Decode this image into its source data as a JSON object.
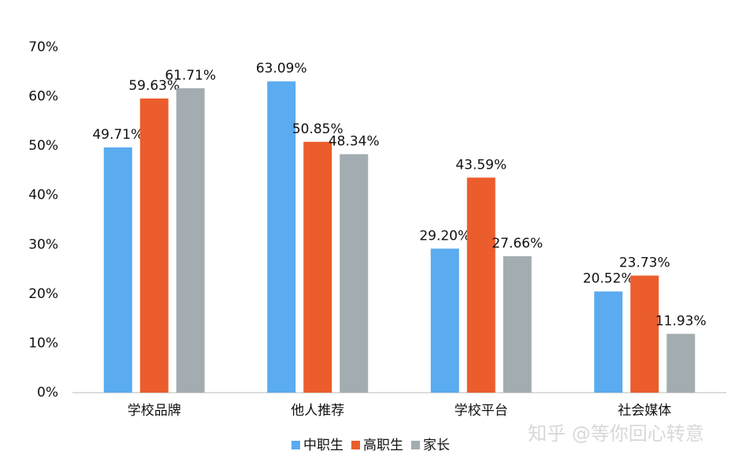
{
  "chart_data": {
    "type": "bar",
    "categories": [
      "学校品牌",
      "他人推荐",
      "学校平台",
      "社会媒体"
    ],
    "series": [
      {
        "name": "中职生",
        "color": "#5aabef",
        "values": [
          49.71,
          63.09,
          29.2,
          20.52
        ],
        "value_labels": [
          "49.71%",
          "63.09%",
          "29.20%",
          "20.52%"
        ]
      },
      {
        "name": "高职生",
        "color": "#eb5d2c",
        "values": [
          59.63,
          50.85,
          43.59,
          23.73
        ],
        "value_labels": [
          "59.63%",
          "50.85%",
          "43.59%",
          "23.73%"
        ]
      },
      {
        "name": "家长",
        "color": "#a3adb1",
        "values": [
          61.71,
          48.34,
          27.66,
          11.93
        ],
        "value_labels": [
          "61.71%",
          "48.34%",
          "27.66%",
          "11.93%"
        ]
      }
    ],
    "ylim": [
      0,
      70
    ],
    "yticks": [
      {
        "value": 0,
        "label": "0%"
      },
      {
        "value": 10,
        "label": "10%"
      },
      {
        "value": 20,
        "label": "20%"
      },
      {
        "value": 30,
        "label": "30%"
      },
      {
        "value": 40,
        "label": "40%"
      },
      {
        "value": 50,
        "label": "50%"
      },
      {
        "value": 60,
        "label": "60%"
      },
      {
        "value": 70,
        "label": "70%"
      }
    ],
    "grid": false,
    "legend": "bottom",
    "watermark": "知乎 @等你回心转意"
  }
}
